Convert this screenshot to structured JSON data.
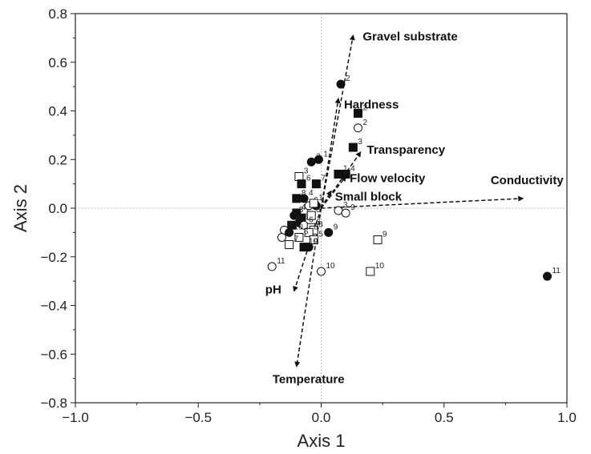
{
  "chart_data": {
    "type": "scatter",
    "title": "",
    "xlabel": "Axis 1",
    "ylabel": "Axis 2",
    "xlim": [
      -1.0,
      1.0
    ],
    "ylim": [
      -0.8,
      0.8
    ],
    "xticks": [
      -1.0,
      -0.5,
      0.0,
      0.5,
      1.0
    ],
    "xtick_labels": [
      "−1.0",
      "−0.5",
      "0.0",
      "0.5",
      "1.0"
    ],
    "yticks": [
      -0.8,
      -0.6,
      -0.4,
      -0.2,
      0.0,
      0.2,
      0.4,
      0.6,
      0.8
    ],
    "ytick_labels": [
      "−0.8",
      "−0.6",
      "−0.4",
      "−0.2",
      "0.0",
      "0.2",
      "0.4",
      "0.6",
      "0.8"
    ],
    "grid": false,
    "zero_lines": true,
    "vectors": [
      {
        "label": "Gravel substrate",
        "x": 0.13,
        "y": 0.71
      },
      {
        "label": "Hardness",
        "x": 0.07,
        "y": 0.45
      },
      {
        "label": "Transparency",
        "x": 0.16,
        "y": 0.23
      },
      {
        "label": "Flow velocity",
        "x": 0.1,
        "y": 0.13
      },
      {
        "label": "Small block",
        "x": 0.04,
        "y": 0.07
      },
      {
        "label": "Conductivity",
        "x": 0.82,
        "y": 0.04
      },
      {
        "label": "pH",
        "x": -0.11,
        "y": -0.34
      },
      {
        "label": "Temperature",
        "x": -0.1,
        "y": -0.65
      }
    ],
    "points": [
      {
        "marker": "filled-circle",
        "x": 0.08,
        "y": 0.51,
        "label": "2"
      },
      {
        "marker": "filled-square",
        "x": 0.15,
        "y": 0.39,
        "label": "2"
      },
      {
        "marker": "open-circle",
        "x": 0.15,
        "y": 0.33,
        "label": "2"
      },
      {
        "marker": "filled-square",
        "x": 0.13,
        "y": 0.25,
        "label": "3"
      },
      {
        "marker": "filled-circle",
        "x": -0.04,
        "y": 0.19,
        "label": "3"
      },
      {
        "marker": "filled-circle",
        "x": -0.01,
        "y": 0.2,
        "label": "1"
      },
      {
        "marker": "open-square",
        "x": -0.09,
        "y": 0.13,
        "label": "3"
      },
      {
        "marker": "filled-square",
        "x": -0.02,
        "y": 0.1,
        "label": "7"
      },
      {
        "marker": "filled-square",
        "x": -0.08,
        "y": 0.1,
        "label": "6"
      },
      {
        "marker": "filled-square",
        "x": 0.07,
        "y": 0.14,
        "label": "1"
      },
      {
        "marker": "filled-square",
        "x": 0.1,
        "y": 0.14,
        "label": "4"
      },
      {
        "marker": "filled-square",
        "x": -0.1,
        "y": 0.04,
        "label": "8"
      },
      {
        "marker": "filled-circle",
        "x": -0.07,
        "y": 0.04,
        "label": "4"
      },
      {
        "marker": "open-circle",
        "x": -0.05,
        "y": 0.01,
        "label": "6"
      },
      {
        "marker": "filled-circle",
        "x": -0.02,
        "y": 0.01,
        "label": "1"
      },
      {
        "marker": "open-square",
        "x": -0.03,
        "y": 0.02,
        "label": "1"
      },
      {
        "marker": "filled-square",
        "x": -0.1,
        "y": -0.02,
        "label": "4"
      },
      {
        "marker": "filled-square",
        "x": -0.08,
        "y": -0.04,
        "label": "6"
      },
      {
        "marker": "filled-circle",
        "x": -0.11,
        "y": -0.03,
        "label": "8"
      },
      {
        "marker": "open-square",
        "x": -0.04,
        "y": -0.03,
        "label": "5"
      },
      {
        "marker": "filled-circle",
        "x": -0.09,
        "y": -0.06,
        "label": "5"
      },
      {
        "marker": "filled-square",
        "x": -0.12,
        "y": -0.07,
        "label": "5"
      },
      {
        "marker": "open-circle",
        "x": -0.07,
        "y": -0.07,
        "label": "6"
      },
      {
        "marker": "open-square",
        "x": -0.04,
        "y": -0.08,
        "label": "6"
      },
      {
        "marker": "open-square",
        "x": -0.03,
        "y": -0.09,
        "label": "8"
      },
      {
        "marker": "open-circle",
        "x": -0.15,
        "y": -0.09,
        "label": "8"
      },
      {
        "marker": "filled-circle",
        "x": -0.13,
        "y": -0.1,
        "label": "10"
      },
      {
        "marker": "open-square",
        "x": -0.05,
        "y": -0.1,
        "label": "8"
      },
      {
        "marker": "open-circle",
        "x": -0.16,
        "y": -0.12,
        "label": "7"
      },
      {
        "marker": "open-square",
        "x": -0.09,
        "y": -0.12,
        "label": "6"
      },
      {
        "marker": "open-square",
        "x": -0.03,
        "y": -0.13,
        "label": "5"
      },
      {
        "marker": "open-square",
        "x": -0.13,
        "y": -0.15,
        "label": "7"
      },
      {
        "marker": "filled-square",
        "x": -0.07,
        "y": -0.16,
        "label": "10"
      },
      {
        "marker": "filled-circle",
        "x": -0.05,
        "y": -0.16,
        "label": "9"
      },
      {
        "marker": "filled-circle",
        "x": 0.03,
        "y": -0.1,
        "label": "9"
      },
      {
        "marker": "open-circle",
        "x": 0.07,
        "y": -0.01,
        "label": "3"
      },
      {
        "marker": "open-circle",
        "x": 0.1,
        "y": -0.02,
        "label": "9"
      },
      {
        "marker": "open-square",
        "x": 0.23,
        "y": -0.13,
        "label": "9"
      },
      {
        "marker": "open-square",
        "x": 0.2,
        "y": -0.26,
        "label": "10"
      },
      {
        "marker": "open-circle",
        "x": 0.0,
        "y": -0.26,
        "label": "10"
      },
      {
        "marker": "open-circle",
        "x": -0.2,
        "y": -0.24,
        "label": "11"
      },
      {
        "marker": "filled-circle",
        "x": 0.92,
        "y": -0.28,
        "label": "11"
      }
    ]
  }
}
